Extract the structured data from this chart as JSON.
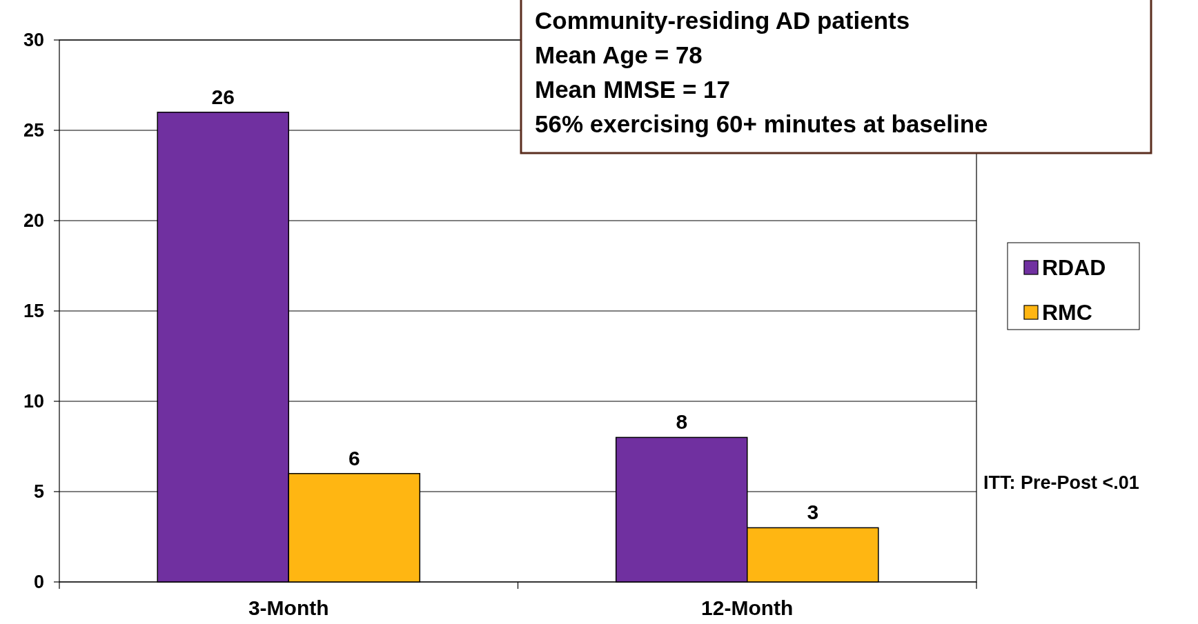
{
  "chart_data": {
    "type": "bar",
    "categories": [
      "3-Month",
      "12-Month"
    ],
    "series": [
      {
        "name": "RDAD",
        "color": "#7030a0",
        "values": [
          26,
          8
        ]
      },
      {
        "name": "RMC",
        "color": "#ffb612",
        "values": [
          6,
          3
        ]
      }
    ],
    "ylim": [
      0,
      30
    ],
    "yticks": [
      0,
      5,
      10,
      15,
      20,
      25,
      30
    ],
    "grid": "y",
    "legend": "right",
    "data_labels": true,
    "annotations": [
      "Community-residing AD patients",
      "Mean Age = 78",
      "Mean MMSE = 17",
      "56% exercising 60+ minutes at baseline",
      "ITT: Pre-Post <.01"
    ]
  }
}
